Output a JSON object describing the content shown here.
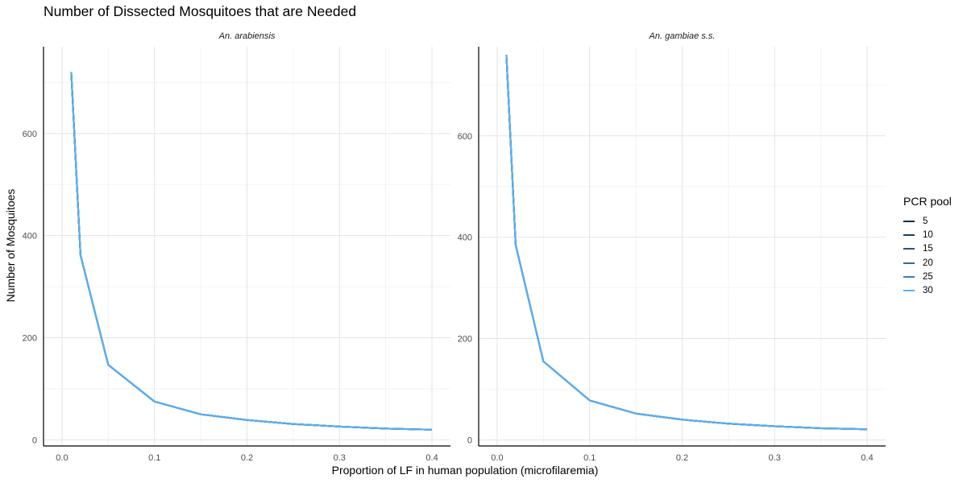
{
  "chart_data": {
    "type": "line",
    "title": "Number of Dissected Mosquitoes that are Needed",
    "xlabel": "Proportion of LF in human population (microfilaremia)",
    "ylabel": "Number of Mosquitoes",
    "legend_title": "PCR pool",
    "legend_position": "right",
    "grid": true,
    "x_ticks": [
      "0.0",
      "0.1",
      "0.2",
      "0.3",
      "0.4"
    ],
    "series_colors": [
      "#132B43",
      "#1D3F5E",
      "#28557B",
      "#336A98",
      "#3F80B7",
      "#56B1F7"
    ],
    "series_names": [
      "5",
      "10",
      "15",
      "20",
      "25",
      "30"
    ],
    "panels": [
      {
        "strip": "An. arabiensis",
        "xlim": [
          -0.02,
          0.42
        ],
        "ylim": [
          -12,
          770
        ],
        "y_ticks": [
          0,
          200,
          400,
          600
        ],
        "x": [
          0.01,
          0.02,
          0.05,
          0.1,
          0.15,
          0.2,
          0.25,
          0.3,
          0.35,
          0.4
        ],
        "y": [
          720,
          362,
          147,
          75,
          50,
          39,
          31,
          26,
          22,
          20
        ]
      },
      {
        "strip": "An. gambiae s.s.",
        "xlim": [
          -0.02,
          0.42
        ],
        "ylim": [
          -12,
          776
        ],
        "y_ticks": [
          0,
          200,
          400,
          600
        ],
        "x": [
          0.01,
          0.02,
          0.05,
          0.1,
          0.15,
          0.2,
          0.25,
          0.3,
          0.35,
          0.4
        ],
        "y": [
          760,
          385,
          155,
          78,
          52,
          40,
          32,
          27,
          23,
          21
        ]
      }
    ]
  }
}
